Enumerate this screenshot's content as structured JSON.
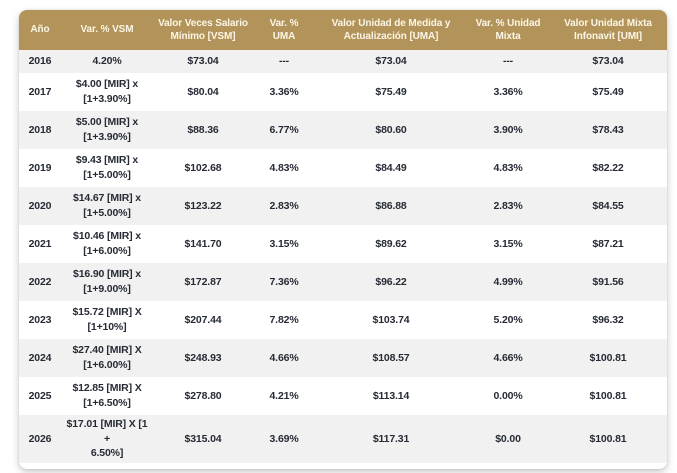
{
  "colors": {
    "header_bg": "#B2945A",
    "header_text": "#FCF6E6",
    "row_alt_bg": "#F1F1F1",
    "row_bg": "#FFFFFF",
    "cell_text": "#262B35"
  },
  "table": {
    "columns": [
      {
        "label": "Año"
      },
      {
        "label": "Var. % VSM"
      },
      {
        "label": "Valor Veces Salario\nMínimo [VSM]"
      },
      {
        "label": "Var. %\nUMA"
      },
      {
        "label": "Valor Unidad de Medida y\nActualización [UMA]"
      },
      {
        "label": "Var. % Unidad\nMixta"
      },
      {
        "label": "Valor Unidad Mixta\nInfonavit [UMI]"
      }
    ],
    "rows": [
      [
        "2016",
        "4.20%",
        "$73.04",
        "---",
        "$73.04",
        "---",
        "$73.04"
      ],
      [
        "2017",
        "$4.00 [MIR] x\n[1+3.90%]",
        "$80.04",
        "3.36%",
        "$75.49",
        "3.36%",
        "$75.49"
      ],
      [
        "2018",
        "$5.00 [MIR] x\n[1+3.90%]",
        "$88.36",
        "6.77%",
        "$80.60",
        "3.90%",
        "$78.43"
      ],
      [
        "2019",
        "$9.43 [MIR] x\n[1+5.00%]",
        "$102.68",
        "4.83%",
        "$84.49",
        "4.83%",
        "$82.22"
      ],
      [
        "2020",
        "$14.67 [MIR] x\n[1+5.00%]",
        "$123.22",
        "2.83%",
        "$86.88",
        "2.83%",
        "$84.55"
      ],
      [
        "2021",
        "$10.46 [MIR] x\n[1+6.00%]",
        "$141.70",
        "3.15%",
        "$89.62",
        "3.15%",
        "$87.21"
      ],
      [
        "2022",
        "$16.90 [MIR] x\n[1+9.00%]",
        "$172.87",
        "7.36%",
        "$96.22",
        "4.99%",
        "$91.56"
      ],
      [
        "2023",
        "$15.72 [MIR] X\n[1+10%]",
        "$207.44",
        "7.82%",
        "$103.74",
        "5.20%",
        "$96.32"
      ],
      [
        "2024",
        "$27.40 [MIR] X\n[1+6.00%]",
        "$248.93",
        "4.66%",
        "$108.57",
        "4.66%",
        "$100.81"
      ],
      [
        "2025",
        "$12.85 [MIR] X\n[1+6.50%]",
        "$278.80",
        "4.21%",
        "$113.14",
        "0.00%",
        "$100.81"
      ],
      [
        "2026",
        "$17.01 [MIR] X [1 +\n6.50%]",
        "$315.04",
        "3.69%",
        "$117.31",
        "$0.00",
        "$100.81"
      ]
    ]
  },
  "chart_data": {
    "type": "table",
    "title": "",
    "columns": [
      "Año",
      "Var. % VSM",
      "Valor Veces Salario Mínimo [VSM]",
      "Var. % UMA",
      "Valor Unidad de Medida y Actualización [UMA]",
      "Var. % Unidad Mixta",
      "Valor Unidad Mixta Infonavit [UMI]"
    ],
    "years": [
      2016,
      2017,
      2018,
      2019,
      2020,
      2021,
      2022,
      2023,
      2024,
      2025,
      2026
    ],
    "series": [
      {
        "name": "Valor Veces Salario Mínimo (VSM)",
        "values": [
          73.04,
          80.04,
          88.36,
          102.68,
          123.22,
          141.7,
          172.87,
          207.44,
          248.93,
          278.8,
          315.04
        ]
      },
      {
        "name": "Var. % UMA",
        "values": [
          null,
          3.36,
          6.77,
          4.83,
          2.83,
          3.15,
          7.36,
          7.82,
          4.66,
          4.21,
          3.69
        ]
      },
      {
        "name": "Valor UMA",
        "values": [
          73.04,
          75.49,
          80.6,
          84.49,
          86.88,
          89.62,
          96.22,
          103.74,
          108.57,
          113.14,
          117.31
        ]
      },
      {
        "name": "Var. % Unidad Mixta",
        "values": [
          null,
          3.36,
          3.9,
          4.83,
          2.83,
          3.15,
          4.99,
          5.2,
          4.66,
          0.0,
          0.0
        ]
      },
      {
        "name": "Valor Unidad Mixta Infonavit (UMI)",
        "values": [
          73.04,
          75.49,
          78.43,
          82.22,
          84.55,
          87.21,
          91.56,
          96.32,
          100.81,
          100.81,
          100.81
        ]
      }
    ],
    "var_pct_vsm_formula": [
      "4.20%",
      "$4.00 [MIR] x [1+3.90%]",
      "$5.00 [MIR] x [1+3.90%]",
      "$9.43 [MIR] x [1+5.00%]",
      "$14.67 [MIR] x [1+5.00%]",
      "$10.46 [MIR] x [1+6.00%]",
      "$16.90 [MIR] x [1+9.00%]",
      "$15.72 [MIR] X [1+10%]",
      "$27.40 [MIR] X [1+6.00%]",
      "$12.85 [MIR] X [1+6.50%]",
      "$17.01 [MIR] X [1 + 6.50%]"
    ]
  }
}
